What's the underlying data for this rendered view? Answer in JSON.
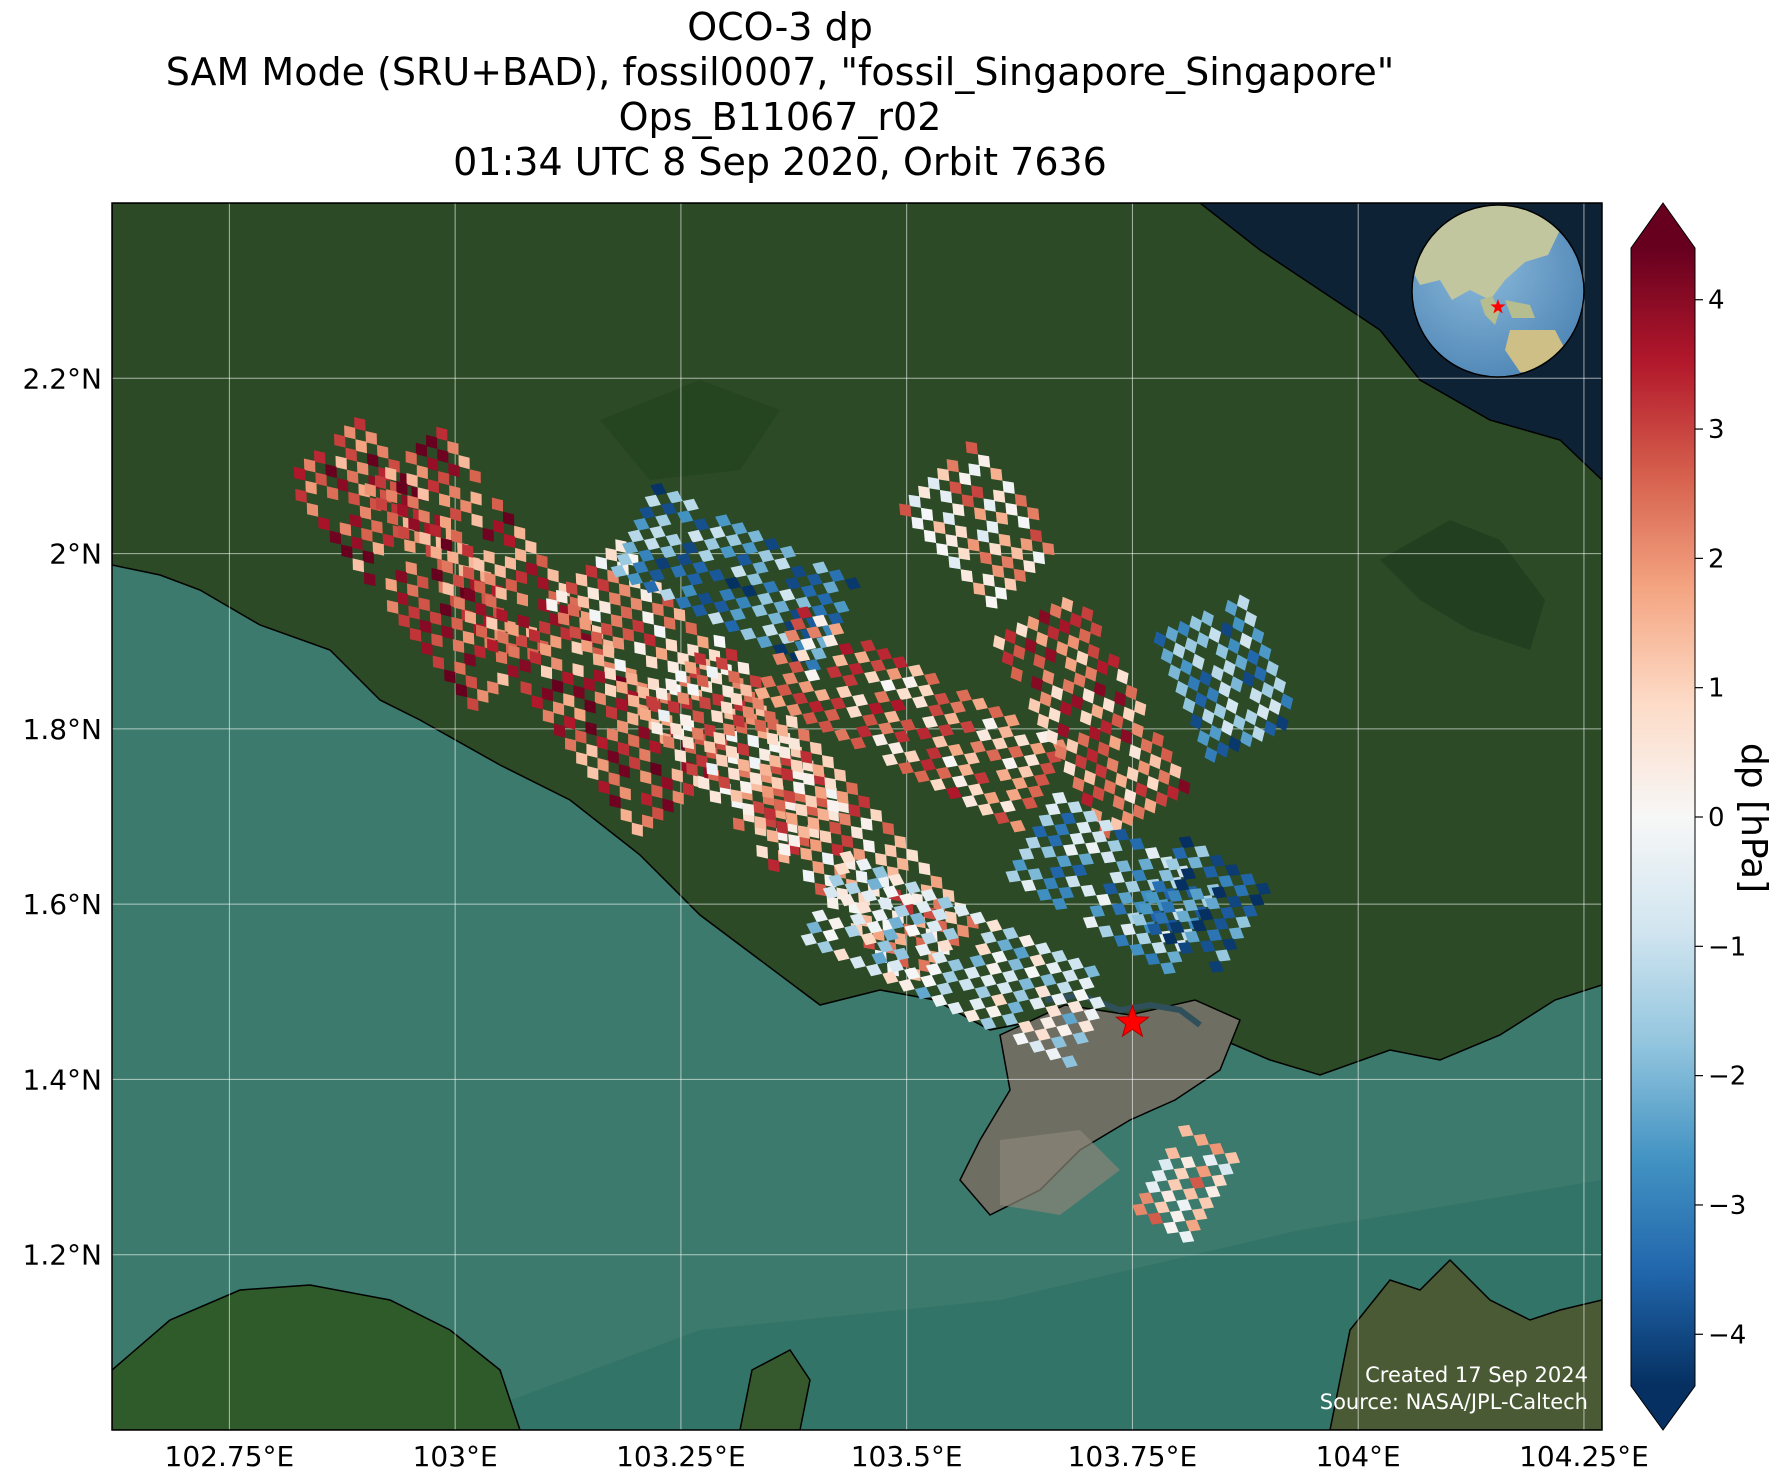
{
  "title": {
    "line1": "OCO-3 dp",
    "line2": "SAM Mode (SRU+BAD), fossil0007, \"fossil_Singapore_Singapore\"",
    "line3": "Ops_B11067_r02",
    "line4": "01:34 UTC 8 Sep 2020, Orbit 7636"
  },
  "axes": {
    "lon_ticks": [
      {
        "value": 102.75,
        "label": "102.75°E"
      },
      {
        "value": 103.0,
        "label": "103°E"
      },
      {
        "value": 103.25,
        "label": "103.25°E"
      },
      {
        "value": 103.5,
        "label": "103.5°E"
      },
      {
        "value": 103.75,
        "label": "103.75°E"
      },
      {
        "value": 104.0,
        "label": "104°E"
      },
      {
        "value": 104.25,
        "label": "104.25°E"
      }
    ],
    "lat_ticks": [
      {
        "value": 2.2,
        "label": "2.2°N"
      },
      {
        "value": 2.0,
        "label": "2°N"
      },
      {
        "value": 1.8,
        "label": "1.8°N"
      },
      {
        "value": 1.6,
        "label": "1.6°N"
      },
      {
        "value": 1.4,
        "label": "1.4°N"
      },
      {
        "value": 1.2,
        "label": "1.2°N"
      }
    ],
    "lon_range": [
      102.62,
      104.27
    ],
    "lat_range": [
      1.0,
      2.4
    ],
    "grid": true
  },
  "colorbar": {
    "label": "dp [hPa]",
    "range": [
      -4.4,
      4.4
    ],
    "ticks": [
      {
        "value": 4,
        "label": "4"
      },
      {
        "value": 3,
        "label": "3"
      },
      {
        "value": 2,
        "label": "2"
      },
      {
        "value": 1,
        "label": "1"
      },
      {
        "value": 0,
        "label": "0"
      },
      {
        "value": -1,
        "label": "−1"
      },
      {
        "value": -2,
        "label": "−2"
      },
      {
        "value": -3,
        "label": "−3"
      },
      {
        "value": -4,
        "label": "−4"
      }
    ],
    "colormap": "RdBu_r",
    "extend": "both"
  },
  "target": {
    "lon": 103.75,
    "lat": 1.465,
    "marker": "red-star"
  },
  "credits": {
    "created": "Created 17 Sep 2024",
    "source": "Source: NASA/JPL-Caltech"
  },
  "chart_data": {
    "type": "heatmap",
    "x_label": "",
    "y_label": "",
    "scan_swaths": [
      {
        "start": [
          102.85,
          2.11
        ],
        "end": [
          103.05,
          1.86
        ],
        "mean_dp": 3.0
      },
      {
        "start": [
          102.94,
          2.1
        ],
        "end": [
          103.23,
          1.72
        ],
        "mean_dp": 2.8
      },
      {
        "start": [
          103.14,
          1.97
        ],
        "end": [
          103.38,
          1.68
        ],
        "mean_dp": 1.6
      },
      {
        "start": [
          103.2,
          2.02
        ],
        "end": [
          103.42,
          1.91
        ],
        "mean_dp": -2.6
      },
      {
        "start": [
          103.25,
          1.86
        ],
        "end": [
          103.53,
          1.54
        ],
        "mean_dp": 1.5
      },
      {
        "start": [
          103.36,
          1.88
        ],
        "end": [
          103.64,
          1.73
        ],
        "mean_dp": 1.8
      },
      {
        "start": [
          103.53,
          2.08
        ],
        "end": [
          103.63,
          1.97
        ],
        "mean_dp": 1.2
      },
      {
        "start": [
          103.64,
          1.92
        ],
        "end": [
          103.76,
          1.7
        ],
        "mean_dp": 2.3
      },
      {
        "start": [
          103.41,
          1.6
        ],
        "end": [
          103.7,
          1.46
        ],
        "mean_dp": -0.8
      },
      {
        "start": [
          103.64,
          1.67
        ],
        "end": [
          103.82,
          1.56
        ],
        "mean_dp": -2.0
      },
      {
        "start": [
          103.78,
          1.62
        ],
        "end": [
          103.86,
          1.57
        ],
        "mean_dp": -3.0
      },
      {
        "start": [
          103.82,
          1.92
        ],
        "end": [
          103.88,
          1.78
        ],
        "mean_dp": -2.5
      },
      {
        "start": [
          103.78,
          1.29
        ],
        "end": [
          103.83,
          1.26
        ],
        "mean_dp": 1.0
      }
    ]
  }
}
